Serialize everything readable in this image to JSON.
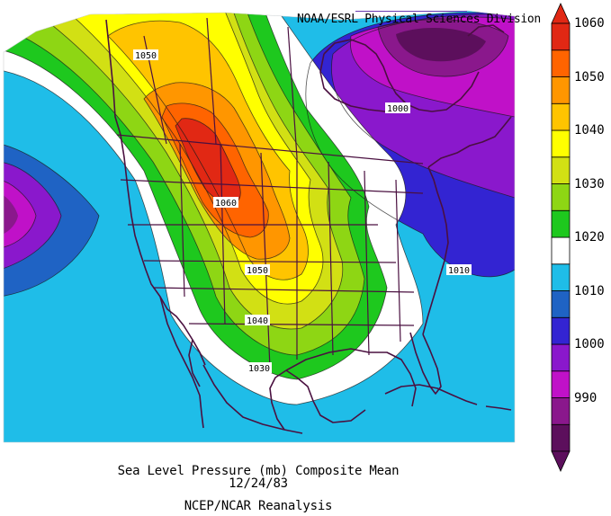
{
  "credit": "NOAA/ESRL Physical Sciences Division",
  "caption": {
    "line1": "Sea Level Pressure (mb) Composite Mean",
    "line2": "12/24/83",
    "line3": "NCEP/NCAR Reanalysis"
  },
  "colorbar": {
    "min": 990,
    "max": 1060,
    "step": 5,
    "labels": [
      "1060",
      "1050",
      "1040",
      "1030",
      "1020",
      "1010",
      "1000",
      "990"
    ],
    "colors": [
      "#5c0f5c",
      "#8a188c",
      "#c011c8",
      "#8a18cc",
      "#3324d2",
      "#1f63c4",
      "#1fbde8",
      "#ffffff",
      "#1ec81e",
      "#8ed614",
      "#d2e014",
      "#ffff00",
      "#ffc400",
      "#ff9600",
      "#ff6400",
      "#e12814"
    ]
  },
  "contour_labels": [
    {
      "text": "1050"
    },
    {
      "text": "1060"
    },
    {
      "text": "1050"
    },
    {
      "text": "1040"
    },
    {
      "text": "1030"
    },
    {
      "text": "1000"
    },
    {
      "text": "1010"
    }
  ]
}
